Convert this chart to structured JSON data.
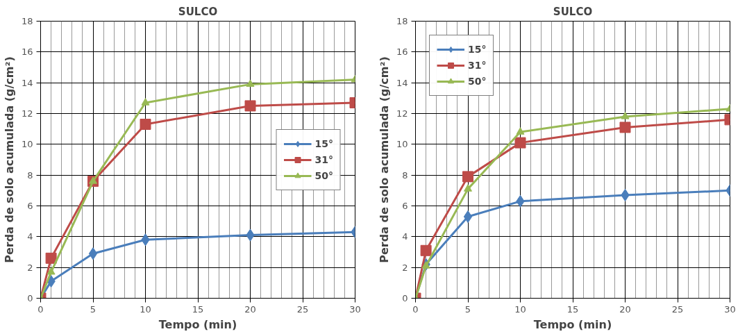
{
  "chart_data": [
    {
      "type": "line",
      "title": "SULCO",
      "xlabel": "Tempo (min)",
      "ylabel": "Perda de solo acumulada (g/cm²)",
      "x": [
        0,
        1,
        5,
        10,
        20,
        30
      ],
      "xlim": [
        0,
        30
      ],
      "xticks": [
        0,
        5,
        10,
        15,
        20,
        25,
        30
      ],
      "ylim": [
        0,
        18
      ],
      "yticks": [
        0,
        2,
        4,
        6,
        8,
        10,
        12,
        14,
        16,
        18
      ],
      "grid": true,
      "legend": "right",
      "series": [
        {
          "name": "15°",
          "color": "#4a7ebb",
          "marker": "diamond",
          "values": [
            0,
            1.1,
            2.9,
            3.8,
            4.1,
            4.3
          ]
        },
        {
          "name": "31°",
          "color": "#be4b48",
          "marker": "square",
          "values": [
            0,
            2.6,
            7.6,
            11.3,
            12.5,
            12.7
          ]
        },
        {
          "name": "50°",
          "color": "#98b954",
          "marker": "triangle",
          "values": [
            0,
            1.7,
            7.6,
            12.7,
            13.9,
            14.2
          ]
        }
      ]
    },
    {
      "type": "line",
      "title": "SULCO",
      "xlabel": "Tempo (min)",
      "ylabel": "Perda de solo acumulada (g/cm²)",
      "x": [
        0,
        1,
        5,
        10,
        20,
        30
      ],
      "xlim": [
        0,
        30
      ],
      "xticks": [
        0,
        5,
        10,
        15,
        20,
        25,
        30
      ],
      "ylim": [
        0,
        18
      ],
      "yticks": [
        0,
        2,
        4,
        6,
        8,
        10,
        12,
        14,
        16,
        18
      ],
      "grid": true,
      "legend": "top left",
      "series": [
        {
          "name": "15°",
          "color": "#4a7ebb",
          "marker": "diamond",
          "values": [
            0,
            2.2,
            5.3,
            6.3,
            6.7,
            7.0
          ]
        },
        {
          "name": "31°",
          "color": "#be4b48",
          "marker": "square",
          "values": [
            0,
            3.1,
            7.9,
            10.1,
            11.1,
            11.6
          ]
        },
        {
          "name": "50°",
          "color": "#98b954",
          "marker": "triangle",
          "values": [
            0,
            2.1,
            7.1,
            10.8,
            11.8,
            12.3
          ]
        }
      ]
    }
  ]
}
